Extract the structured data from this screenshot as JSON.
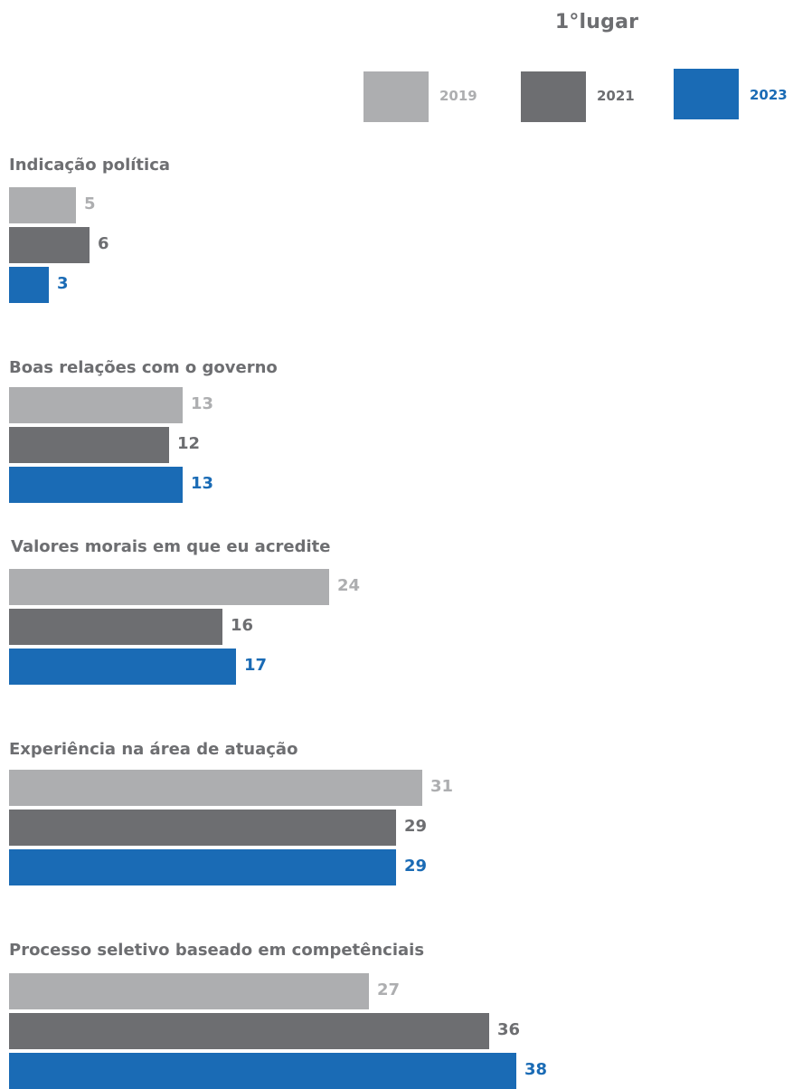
{
  "title": "1°lugar",
  "colors": {
    "2019": "#adaeb0",
    "2021": "#6d6e71",
    "2023": "#1a6bb5"
  },
  "chart_data": {
    "type": "bar",
    "orientation": "horizontal",
    "title": "1°lugar",
    "categories": [
      "Indicação política",
      "Boas relações com o governo",
      "Valores morais em que eu acredite",
      "Experiência na área de atuação",
      "Processo seletivo baseado em competênciais"
    ],
    "series": [
      {
        "name": "2019",
        "color": "#adaeb0",
        "values": [
          5,
          13,
          24,
          31,
          27
        ]
      },
      {
        "name": "2021",
        "color": "#6d6e71",
        "values": [
          6,
          12,
          16,
          29,
          36
        ]
      },
      {
        "name": "2023",
        "color": "#1a6bb5",
        "values": [
          3,
          13,
          17,
          29,
          38
        ]
      }
    ],
    "legend_position": "top-right",
    "grid": false,
    "xlim": [
      0,
      40
    ]
  }
}
